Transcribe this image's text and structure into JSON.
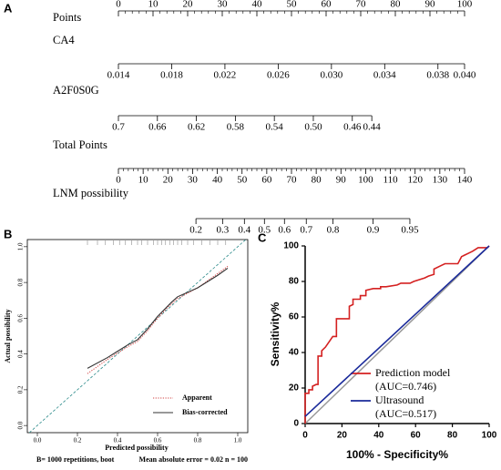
{
  "chart_data": [
    {
      "type": "nomogram",
      "label": "A",
      "rows": [
        {
          "name": "Points",
          "xlim": [
            0,
            100
          ],
          "points_at_ends": [
            0,
            100
          ],
          "minor_divisions": 5,
          "label_side": "above",
          "ticks": [
            0,
            10,
            20,
            30,
            40,
            50,
            60,
            70,
            80,
            90,
            100
          ]
        },
        {
          "name": "CA4",
          "xlim": [
            0.014,
            0.04
          ],
          "points_at_ends": [
            0,
            100
          ],
          "label_side": "below",
          "ticks": [
            0.014,
            0.018,
            0.022,
            0.026,
            {
              "value": 0.03,
              "label": "0.030"
            },
            0.034,
            0.038,
            {
              "value": 0.04,
              "label": "0.040"
            }
          ]
        },
        {
          "name": "A2F0S0G",
          "xlim": [
            0.7,
            0.44
          ],
          "points_at_ends": [
            0,
            73.2
          ],
          "label_side": "below",
          "ticks": [
            0.7,
            0.66,
            0.62,
            0.58,
            0.54,
            {
              "value": 0.5,
              "label": "0.50"
            },
            0.46,
            0.44
          ]
        },
        {
          "name": "Total Points",
          "xlim": [
            0,
            140
          ],
          "points_at_ends": [
            0,
            100
          ],
          "minor_divisions": 5,
          "label_side": "below",
          "ticks": [
            0,
            10,
            20,
            30,
            40,
            50,
            60,
            70,
            80,
            90,
            100,
            110,
            120,
            130,
            140
          ]
        },
        {
          "name": "LNM possibility",
          "xlim": [
            0.2,
            0.95
          ],
          "points_at_ends": [
            22.4,
            84.2
          ],
          "scale": "logit",
          "label_side": "below",
          "ticks": [
            0.2,
            0.3,
            0.4,
            0.5,
            0.6,
            0.7,
            0.8,
            0.9,
            0.95
          ]
        }
      ]
    },
    {
      "type": "line",
      "label": "B",
      "x_label": "Predicted possibility",
      "y_label": "Actual possibility",
      "xlim": [
        -0.05,
        1.05
      ],
      "ylim": [
        -0.04,
        1.04
      ],
      "xticks": [
        {
          "value": 0,
          "label": "0.0"
        },
        0.2,
        0.4,
        0.6,
        0.8,
        {
          "value": 1,
          "label": "1.0"
        }
      ],
      "yticks": [
        {
          "value": 0,
          "label": "0.0"
        },
        0.2,
        0.4,
        0.6,
        0.8,
        {
          "value": 1,
          "label": "1.0"
        }
      ],
      "diagonal": true,
      "diagonal_color": "#2a8a8a",
      "notes": [
        "B= 1000 repetitions, boot",
        "Mean absolute error = 0.02 n = 100"
      ],
      "rug": [
        0.25,
        0.3,
        0.34,
        0.38,
        0.41,
        0.44,
        0.47,
        0.5,
        0.52,
        0.55,
        0.58,
        0.6,
        0.62,
        0.64,
        0.66,
        0.68,
        0.7,
        0.72,
        0.75,
        0.78,
        0.82,
        0.86,
        0.9,
        0.94
      ],
      "series": [
        {
          "name": "Apparent",
          "color": "#d04040",
          "dash": "dotted",
          "x": [
            0.25,
            0.35,
            0.45,
            0.5,
            0.55,
            0.6,
            0.65,
            0.7,
            0.8,
            0.9,
            0.95
          ],
          "values": [
            0.29,
            0.37,
            0.44,
            0.47,
            0.53,
            0.6,
            0.66,
            0.71,
            0.77,
            0.85,
            0.89
          ]
        },
        {
          "name": "Bias-corrected",
          "color": "#333333",
          "dash": "solid",
          "x": [
            0.25,
            0.35,
            0.45,
            0.5,
            0.55,
            0.6,
            0.67,
            0.7,
            0.8,
            0.9,
            0.95
          ],
          "values": [
            0.32,
            0.38,
            0.45,
            0.48,
            0.54,
            0.61,
            0.69,
            0.72,
            0.77,
            0.84,
            0.88
          ]
        }
      ]
    },
    {
      "type": "line",
      "label": "C",
      "x_label": "100% - Specificity%",
      "y_label": "Sensitivity%",
      "xlim": [
        0,
        100
      ],
      "ylim": [
        0,
        100
      ],
      "xticks": [
        0,
        20,
        40,
        60,
        80,
        100
      ],
      "yticks": [
        0,
        20,
        40,
        60,
        80,
        100
      ],
      "diagonal": true,
      "diagonal_color": "#999999",
      "series": [
        {
          "name": "Prediction model",
          "sublabel": "(AUC=0.746)",
          "color": "#d42020",
          "dash": "solid",
          "x": [
            0,
            0,
            2,
            2,
            4,
            4,
            6,
            7,
            7,
            9,
            9,
            11,
            13,
            15,
            17,
            17,
            24,
            24,
            26,
            26,
            30,
            30,
            33,
            33,
            37,
            41,
            41,
            44,
            50,
            52,
            57,
            59,
            65,
            67,
            70,
            70,
            74,
            76,
            83,
            85,
            89,
            91,
            94,
            99,
            100
          ],
          "values": [
            0,
            17,
            17,
            19,
            19,
            21,
            22,
            22,
            38,
            38,
            41,
            43,
            46,
            49,
            49,
            59,
            59,
            66,
            67,
            70,
            70,
            72,
            72,
            75,
            76,
            76,
            77,
            77,
            78,
            79,
            79,
            80,
            82,
            83,
            84,
            87,
            89,
            90,
            90,
            94,
            96,
            97,
            99,
            99,
            100
          ]
        },
        {
          "name": "Ultrasound",
          "sublabel": "(AUC=0.517)",
          "color": "#1a2a9a",
          "dash": "solid",
          "x": [
            0,
            100
          ],
          "values": [
            4,
            100
          ]
        }
      ]
    }
  ]
}
